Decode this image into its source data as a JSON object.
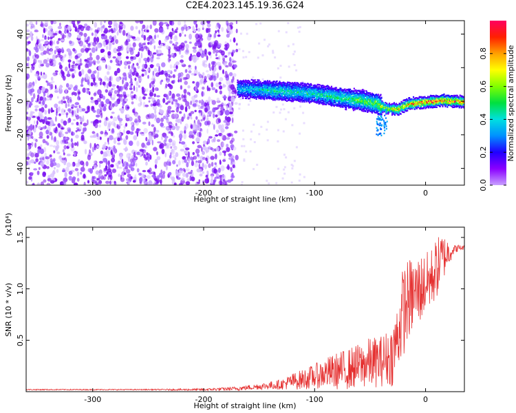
{
  "title": "C2E4.2023.145.19.36.G24",
  "chart_data": [
    {
      "type": "heatmap",
      "title": "C2E4.2023.145.19.36.G24",
      "xlabel": "Height of straight line (km)",
      "ylabel": "Frequency (Hz)",
      "xlim": [
        -360,
        35
      ],
      "ylim": [
        -50,
        48
      ],
      "xticks": [
        -300,
        -200,
        -100,
        0
      ],
      "yticks": [
        -40,
        -20,
        0,
        20,
        40
      ],
      "colorbar": {
        "label": "Normalized spectral amplitude",
        "range": [
          0,
          1
        ],
        "ticks": [
          0.0,
          0.2,
          0.4,
          0.6,
          0.8
        ],
        "colormap": [
          "#c8a0ff",
          "#8a00ff",
          "#2000ff",
          "#0090ff",
          "#00e0e0",
          "#00e040",
          "#80ff00",
          "#ffff00",
          "#ffa000",
          "#ff2000",
          "#ff0060"
        ]
      },
      "noise_region": {
        "x": [
          -360,
          -170
        ],
        "y": [
          -50,
          48
        ],
        "amplitude": 0.15
      },
      "signal_ridge": {
        "x": [
          -170,
          -140,
          -120,
          -100,
          -80,
          -60,
          -45,
          -35,
          -25,
          -15,
          0,
          15,
          35
        ],
        "y": [
          8,
          7,
          6,
          5,
          3,
          1,
          -1,
          -4,
          -4,
          -1,
          0,
          1,
          0
        ],
        "amplitude": [
          0.35,
          0.45,
          0.45,
          0.45,
          0.5,
          0.55,
          0.6,
          0.65,
          0.75,
          0.8,
          0.85,
          0.9,
          0.85
        ]
      },
      "grid": false
    },
    {
      "type": "line",
      "xlabel": "Height of straight line (km)",
      "ylabel": "SNR (10 * v/v)",
      "y_multiplier": "(x10⁴)",
      "xlim": [
        -360,
        35
      ],
      "ylim": [
        0,
        1.6
      ],
      "xticks": [
        -300,
        -200,
        -100,
        0
      ],
      "yticks": [
        0.5,
        1.0,
        1.5
      ],
      "series": [
        {
          "color": "#e53030",
          "x": [
            -360,
            -300,
            -250,
            -200,
            -170,
            -150,
            -130,
            -120,
            -110,
            -100,
            -90,
            -80,
            -70,
            -60,
            -50,
            -40,
            -30,
            -25,
            -20,
            -15,
            -10,
            -5,
            0,
            5,
            10,
            15,
            20,
            25,
            30,
            35
          ],
          "y": [
            0.02,
            0.02,
            0.02,
            0.02,
            0.03,
            0.05,
            0.07,
            0.1,
            0.12,
            0.15,
            0.18,
            0.2,
            0.22,
            0.25,
            0.28,
            0.3,
            0.35,
            0.55,
            0.8,
            0.9,
            0.95,
            1.0,
            1.05,
            1.1,
            1.2,
            1.3,
            1.35,
            1.38,
            1.4,
            1.4
          ],
          "noise": [
            0.005,
            0.005,
            0.005,
            0.01,
            0.02,
            0.03,
            0.05,
            0.08,
            0.1,
            0.12,
            0.15,
            0.18,
            0.2,
            0.22,
            0.25,
            0.25,
            0.3,
            0.35,
            0.45,
            0.4,
            0.35,
            0.35,
            0.3,
            0.3,
            0.3,
            0.25,
            0.15,
            0.05,
            0.03,
            0.02
          ]
        }
      ],
      "grid": false
    }
  ]
}
